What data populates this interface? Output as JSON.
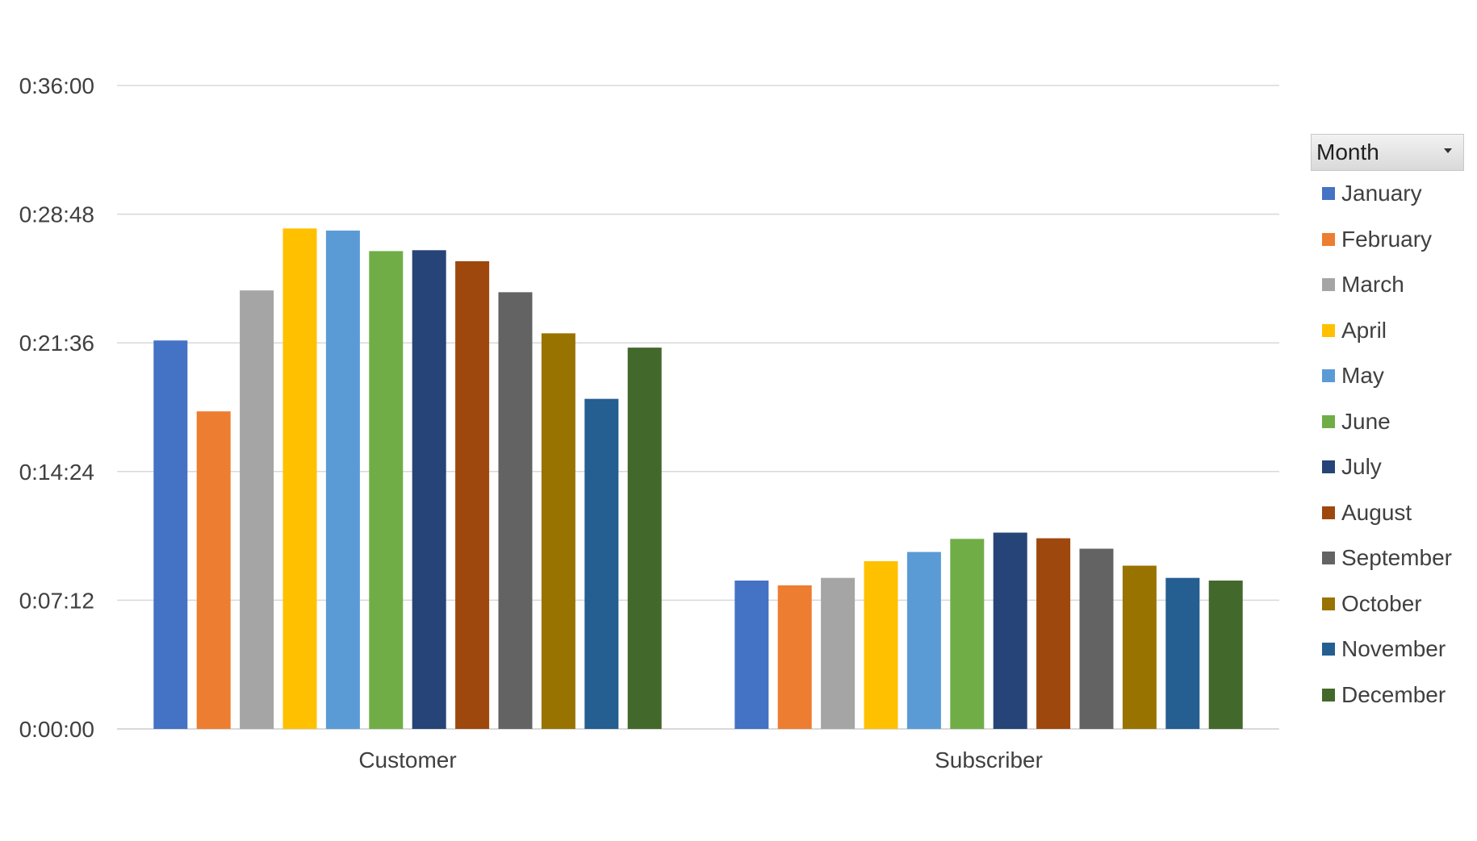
{
  "chart_data": {
    "type": "bar",
    "categories": [
      "Customer",
      "Subscriber"
    ],
    "y_ticks": [
      "0:00:00",
      "0:07:12",
      "0:14:24",
      "0:21:36",
      "0:28:48",
      "0:36:00"
    ],
    "ylim_seconds": [
      0,
      2160
    ],
    "grid": true,
    "legend_position": "right",
    "legend_title": "Month",
    "series": [
      {
        "name": "January",
        "color": "#4472C4",
        "values_seconds": [
          1304,
          498
        ]
      },
      {
        "name": "February",
        "color": "#ED7D31",
        "values_seconds": [
          1066,
          482
        ]
      },
      {
        "name": "March",
        "color": "#A5A5A5",
        "values_seconds": [
          1472,
          507
        ]
      },
      {
        "name": "April",
        "color": "#FFC000",
        "values_seconds": [
          1680,
          563
        ]
      },
      {
        "name": "May",
        "color": "#5B9BD5",
        "values_seconds": [
          1673,
          594
        ]
      },
      {
        "name": "June",
        "color": "#70AD47",
        "values_seconds": [
          1604,
          638
        ]
      },
      {
        "name": "July",
        "color": "#264478",
        "values_seconds": [
          1607,
          659
        ]
      },
      {
        "name": "August",
        "color": "#9E480E",
        "values_seconds": [
          1570,
          640
        ]
      },
      {
        "name": "September",
        "color": "#636363",
        "values_seconds": [
          1466,
          605
        ]
      },
      {
        "name": "October",
        "color": "#997300",
        "values_seconds": [
          1328,
          548
        ]
      },
      {
        "name": "November",
        "color": "#255E91",
        "values_seconds": [
          1108,
          507
        ]
      },
      {
        "name": "December",
        "color": "#43682B",
        "values_seconds": [
          1280,
          498
        ]
      }
    ],
    "colors": {
      "gridline": "#d9d9d9",
      "axis_text": "#404040"
    }
  }
}
